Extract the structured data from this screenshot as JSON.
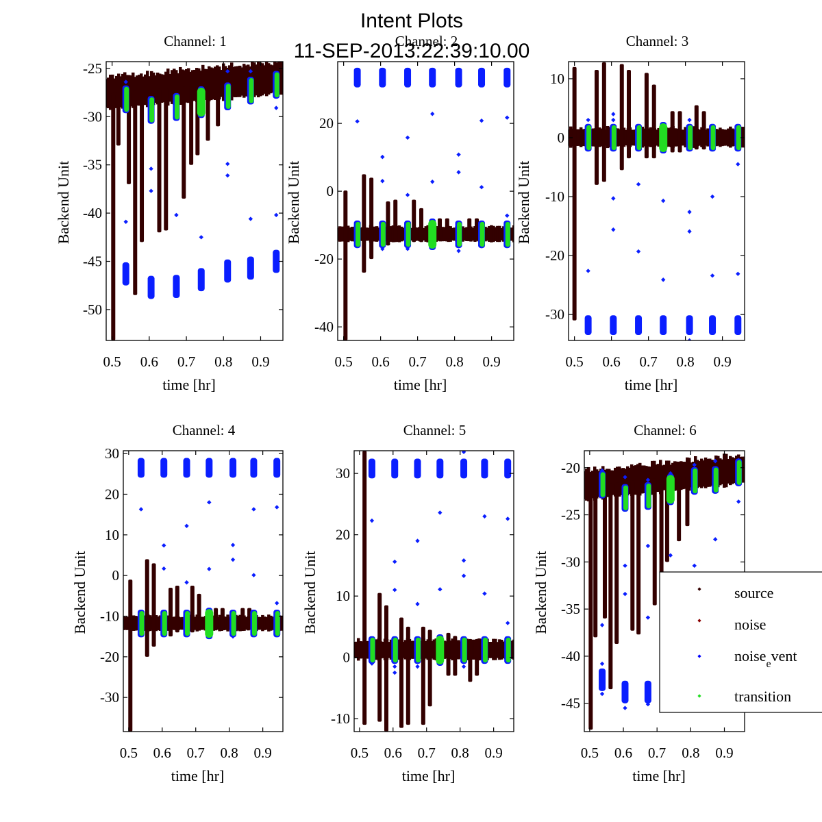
{
  "chart_data": {
    "type": "scatter",
    "title": "Intent Plots",
    "subtitle": "11-SEP-2013:22:39:10.00",
    "legend": {
      "placement": "lower-right of Channel 6",
      "entries": [
        {
          "name": "source",
          "color": "#330000"
        },
        {
          "name": "noise",
          "color": "#8b0000"
        },
        {
          "name": "noise",
          "sub": "e",
          "tail": "vent",
          "color": "#0000ff"
        },
        {
          "name": "transition",
          "color": "#22dd22"
        }
      ]
    },
    "series_colors": {
      "source": "#330000",
      "noise": "#8b0000",
      "noise_event": "#0a1eff",
      "transition": "#22dd22"
    },
    "transition_times": [
      0.537,
      0.605,
      0.673,
      0.74,
      0.811,
      0.873,
      0.942
    ],
    "panels": [
      {
        "title": "Channel: 1",
        "xlabel": "time [hr]",
        "ylabel": "Backend Unit",
        "xlim": [
          0.484,
          0.96
        ],
        "ylim": [
          -53.2,
          -24.3
        ],
        "xticks": [
          0.5,
          0.6,
          0.7,
          0.8,
          0.9
        ],
        "yticks": [
          -25,
          -30,
          -35,
          -40,
          -45,
          -50
        ],
        "source_baseline": -27.6,
        "source_trend_end": -26.0,
        "source_band": 1.4,
        "source_dips": [
          [
            0.503,
            -53.2
          ],
          [
            0.517,
            -33
          ],
          [
            0.545,
            -37
          ],
          [
            0.562,
            -48.5
          ],
          [
            0.58,
            -43
          ],
          [
            0.627,
            -42
          ],
          [
            0.645,
            -41.8
          ],
          [
            0.693,
            -38.5
          ],
          [
            0.713,
            -35
          ],
          [
            0.73,
            -34
          ],
          [
            0.758,
            -32.5
          ],
          [
            0.785,
            -31
          ]
        ],
        "transition_centers": [
          -28.2,
          -29.3,
          -29.0,
          -28.5,
          -27.9,
          -27.3,
          -26.7
        ],
        "event_cluster_centers": [
          -46.3,
          -47.7,
          -47.6,
          -46.9,
          -46.0,
          -45.7,
          -45.0
        ],
        "event_outliers": [
          [
            0.537,
            -40.9
          ],
          [
            0.605,
            -37.7
          ],
          [
            0.673,
            -40.2
          ],
          [
            0.74,
            -42.5
          ],
          [
            0.811,
            -34.9
          ],
          [
            0.811,
            -36.1
          ],
          [
            0.873,
            -40.6
          ],
          [
            0.942,
            -40.2
          ],
          [
            0.605,
            -35.4
          ],
          [
            0.537,
            -26.4
          ],
          [
            0.537,
            -29.0
          ],
          [
            0.811,
            -25.3
          ],
          [
            0.873,
            -25.3
          ],
          [
            0.942,
            -29.1
          ]
        ]
      },
      {
        "title": "Channel: 2",
        "xlabel": "time [hr]",
        "ylabel": "Backend Unit",
        "xlim": [
          0.484,
          0.96
        ],
        "ylim": [
          -44.0,
          38.2
        ],
        "xticks": [
          0.5,
          0.6,
          0.7,
          0.8,
          0.9
        ],
        "yticks": [
          20,
          0,
          -20,
          -40
        ],
        "source_baseline": -12.7,
        "source_trend_end": -12.7,
        "source_band": 1.8,
        "source_spikes": [
          [
            0.505,
            0.2,
            -44
          ],
          [
            0.555,
            5,
            -24
          ],
          [
            0.575,
            4,
            -20
          ],
          [
            0.62,
            -3,
            -16
          ],
          [
            0.64,
            -2.5,
            -15
          ],
          [
            0.69,
            -2.5,
            -15
          ],
          [
            0.71,
            -5,
            -15
          ],
          [
            0.76,
            -8,
            -14
          ],
          [
            0.78,
            -8,
            -14
          ],
          [
            0.84,
            -8,
            -14
          ],
          [
            0.86,
            -8,
            -14
          ]
        ],
        "transition_centers": [
          -12.7,
          -12.7,
          -12.7,
          -12.7,
          -12.7,
          -12.7,
          -12.7
        ],
        "event_cluster_centers": [
          33.5,
          33.5,
          33.5,
          33.5,
          33.5,
          33.5,
          33.5
        ],
        "event_outliers": [
          [
            0.537,
            20.6
          ],
          [
            0.605,
            10.1
          ],
          [
            0.605,
            3.0
          ],
          [
            0.673,
            15.8
          ],
          [
            0.673,
            -1.1
          ],
          [
            0.74,
            22.8
          ],
          [
            0.74,
            2.8
          ],
          [
            0.811,
            10.8
          ],
          [
            0.811,
            5.6
          ],
          [
            0.873,
            20.8
          ],
          [
            0.873,
            1.2
          ],
          [
            0.942,
            21.7
          ],
          [
            0.942,
            -7.2
          ],
          [
            0.537,
            -16
          ],
          [
            0.605,
            -17
          ],
          [
            0.673,
            -17
          ],
          [
            0.811,
            -17.6
          ],
          [
            0.873,
            -16.2
          ],
          [
            0.942,
            -16
          ]
        ]
      },
      {
        "title": "Channel: 3",
        "xlabel": "time [hr]",
        "ylabel": "Backend Unit",
        "xlim": [
          0.484,
          0.96
        ],
        "ylim": [
          -34.4,
          12.9
        ],
        "xticks": [
          0.5,
          0.6,
          0.7,
          0.8,
          0.9
        ],
        "yticks": [
          10,
          0,
          -10,
          -20,
          -30
        ],
        "source_baseline": 0.0,
        "source_trend_end": 0.0,
        "source_band": 1.3,
        "source_spikes": [
          [
            0.5,
            12,
            -31
          ],
          [
            0.56,
            11.5,
            -8
          ],
          [
            0.58,
            12.8,
            -7.5
          ],
          [
            0.628,
            12.5,
            -5.5
          ],
          [
            0.647,
            11.5,
            -3.5
          ],
          [
            0.695,
            11,
            -3.5
          ],
          [
            0.715,
            9,
            -3.5
          ],
          [
            0.765,
            4.5,
            -2.5
          ],
          [
            0.785,
            4.5,
            -2.5
          ],
          [
            0.83,
            5.5,
            -2
          ],
          [
            0.85,
            4.5,
            -2
          ]
        ],
        "transition_centers": [
          0,
          0,
          0,
          0,
          0,
          0,
          0
        ],
        "event_cluster_centers": [
          -31.8,
          -31.8,
          -31.8,
          -31.8,
          -31.8,
          -31.8,
          -31.8
        ],
        "event_outliers": [
          [
            0.537,
            -22.6
          ],
          [
            0.605,
            -10.3
          ],
          [
            0.605,
            -15.6
          ],
          [
            0.673,
            -7.9
          ],
          [
            0.673,
            -19.3
          ],
          [
            0.74,
            -10.7
          ],
          [
            0.74,
            -24.1
          ],
          [
            0.811,
            -12.6
          ],
          [
            0.811,
            -15.9
          ],
          [
            0.873,
            -10
          ],
          [
            0.873,
            -23.4
          ],
          [
            0.942,
            -4.5
          ],
          [
            0.942,
            -23.1
          ],
          [
            0.605,
            4
          ],
          [
            0.605,
            3
          ],
          [
            0.811,
            3
          ],
          [
            0.537,
            3
          ],
          [
            0.811,
            -34.4
          ]
        ]
      },
      {
        "title": "Channel: 4",
        "xlabel": "time [hr]",
        "ylabel": "Backend Unit",
        "xlim": [
          0.484,
          0.96
        ],
        "ylim": [
          -38.4,
          30.7
        ],
        "xticks": [
          0.5,
          0.6,
          0.7,
          0.8,
          0.9
        ],
        "yticks": [
          30,
          20,
          10,
          0,
          -10,
          -20,
          -30
        ],
        "source_baseline": -11.8,
        "source_trend_end": -11.8,
        "source_band": 1.5,
        "source_spikes": [
          [
            0.505,
            -1,
            -38.4
          ],
          [
            0.555,
            4,
            -20
          ],
          [
            0.575,
            3,
            -17.5
          ],
          [
            0.625,
            -3,
            -15
          ],
          [
            0.645,
            -2.5,
            -14
          ],
          [
            0.69,
            -2.5,
            -14
          ],
          [
            0.71,
            -4.5,
            -13
          ],
          [
            0.76,
            -8,
            -13
          ],
          [
            0.78,
            -8,
            -13
          ],
          [
            0.84,
            -8,
            -13
          ],
          [
            0.86,
            -8,
            -13
          ]
        ],
        "transition_centers": [
          -11.8,
          -11.8,
          -11.8,
          -11.8,
          -11.8,
          -11.8,
          -11.8
        ],
        "event_cluster_centers": [
          26.5,
          26.5,
          26.5,
          26.5,
          26.5,
          26.5,
          26.5
        ],
        "event_outliers": [
          [
            0.537,
            16.3
          ],
          [
            0.605,
            7.4
          ],
          [
            0.605,
            1.7
          ],
          [
            0.673,
            12.2
          ],
          [
            0.673,
            -1.7
          ],
          [
            0.74,
            18
          ],
          [
            0.74,
            1.6
          ],
          [
            0.811,
            7.5
          ],
          [
            0.811,
            3.9
          ],
          [
            0.873,
            16.3
          ],
          [
            0.873,
            0.1
          ],
          [
            0.942,
            16.8
          ],
          [
            0.942,
            -6.8
          ],
          [
            0.537,
            -14
          ],
          [
            0.605,
            -14.5
          ],
          [
            0.673,
            -14.4
          ],
          [
            0.811,
            -15
          ],
          [
            0.873,
            -14.2
          ],
          [
            0.942,
            -13.5
          ]
        ]
      },
      {
        "title": "Channel: 5",
        "xlabel": "time [hr]",
        "ylabel": "Backend Unit",
        "xlim": [
          0.484,
          0.96
        ],
        "ylim": [
          -12.1,
          33.7
        ],
        "xticks": [
          0.5,
          0.6,
          0.7,
          0.8,
          0.9
        ],
        "yticks": [
          30,
          20,
          10,
          0,
          -10
        ],
        "source_baseline": 1.2,
        "source_trend_end": 1.2,
        "source_band": 1.3,
        "source_spikes": [
          [
            0.515,
            33.7,
            -11
          ],
          [
            0.56,
            10.5,
            -10.5
          ],
          [
            0.58,
            8.5,
            -12.1
          ],
          [
            0.625,
            6.5,
            -11.5
          ],
          [
            0.645,
            5,
            -11
          ],
          [
            0.69,
            5,
            -11
          ],
          [
            0.71,
            4.5,
            -8
          ],
          [
            0.765,
            4,
            -3
          ],
          [
            0.785,
            3.5,
            -3
          ],
          [
            0.83,
            3,
            -4
          ],
          [
            0.85,
            3,
            -3
          ]
        ],
        "transition_centers": [
          1.2,
          1.2,
          1.2,
          1.2,
          1.2,
          1.2,
          1.2
        ],
        "event_cluster_centers": [
          30.8,
          30.8,
          30.8,
          30.8,
          30.8,
          30.8,
          30.8
        ],
        "event_outliers": [
          [
            0.537,
            22.3
          ],
          [
            0.605,
            15.6
          ],
          [
            0.605,
            11
          ],
          [
            0.673,
            19
          ],
          [
            0.673,
            8.7
          ],
          [
            0.74,
            23.6
          ],
          [
            0.74,
            11.1
          ],
          [
            0.811,
            15.8
          ],
          [
            0.811,
            13.3
          ],
          [
            0.873,
            23
          ],
          [
            0.873,
            10.4
          ],
          [
            0.942,
            22.6
          ],
          [
            0.942,
            5.6
          ],
          [
            0.537,
            -1
          ],
          [
            0.605,
            -1.5
          ],
          [
            0.605,
            -2.5
          ],
          [
            0.673,
            -1.5
          ],
          [
            0.74,
            -1
          ],
          [
            0.811,
            -1.5
          ],
          [
            0.811,
            33.5
          ]
        ]
      },
      {
        "title": "Channel: 6",
        "xlabel": "time [hr]",
        "ylabel": "Backend Unit",
        "xlim": [
          0.484,
          0.96
        ],
        "ylim": [
          -48.0,
          -18.2
        ],
        "xticks": [
          0.5,
          0.6,
          0.7,
          0.8,
          0.9
        ],
        "yticks": [
          -20,
          -25,
          -30,
          -35,
          -40,
          -45
        ],
        "source_baseline": -21.9,
        "source_trend_end": -20.2,
        "source_band": 1.3,
        "source_dips": [
          [
            0.503,
            -47.8
          ],
          [
            0.517,
            -38
          ],
          [
            0.545,
            -36
          ],
          [
            0.562,
            -43.5
          ],
          [
            0.58,
            -38.7
          ],
          [
            0.627,
            -37.3
          ],
          [
            0.645,
            -37.7
          ],
          [
            0.693,
            -34.6
          ],
          [
            0.713,
            -32.5
          ],
          [
            0.73,
            -30
          ],
          [
            0.765,
            -27.8
          ],
          [
            0.79,
            -26.2
          ]
        ],
        "transition_centers": [
          -21.8,
          -23.2,
          -23.0,
          -22.3,
          -21.4,
          -21.3,
          -20.5
        ],
        "event_cluster_centers": [
          -42.5,
          -43.8,
          -43.8
        ],
        "event_outliers": [
          [
            0.537,
            -36.7
          ],
          [
            0.537,
            -40.8
          ],
          [
            0.537,
            -44
          ],
          [
            0.605,
            -30.4
          ],
          [
            0.605,
            -33.4
          ],
          [
            0.605,
            -45.5
          ],
          [
            0.673,
            -28.3
          ],
          [
            0.673,
            -35.9
          ],
          [
            0.673,
            -45.1
          ],
          [
            0.74,
            -29.3
          ],
          [
            0.811,
            -30.4
          ],
          [
            0.873,
            -27.6
          ],
          [
            0.942,
            -23.6
          ],
          [
            0.537,
            -20.3
          ],
          [
            0.605,
            -21
          ],
          [
            0.673,
            -21.3
          ],
          [
            0.74,
            -20.6
          ],
          [
            0.811,
            -19.7
          ],
          [
            0.873,
            -19.3
          ],
          [
            0.942,
            -19.2
          ]
        ]
      }
    ]
  }
}
